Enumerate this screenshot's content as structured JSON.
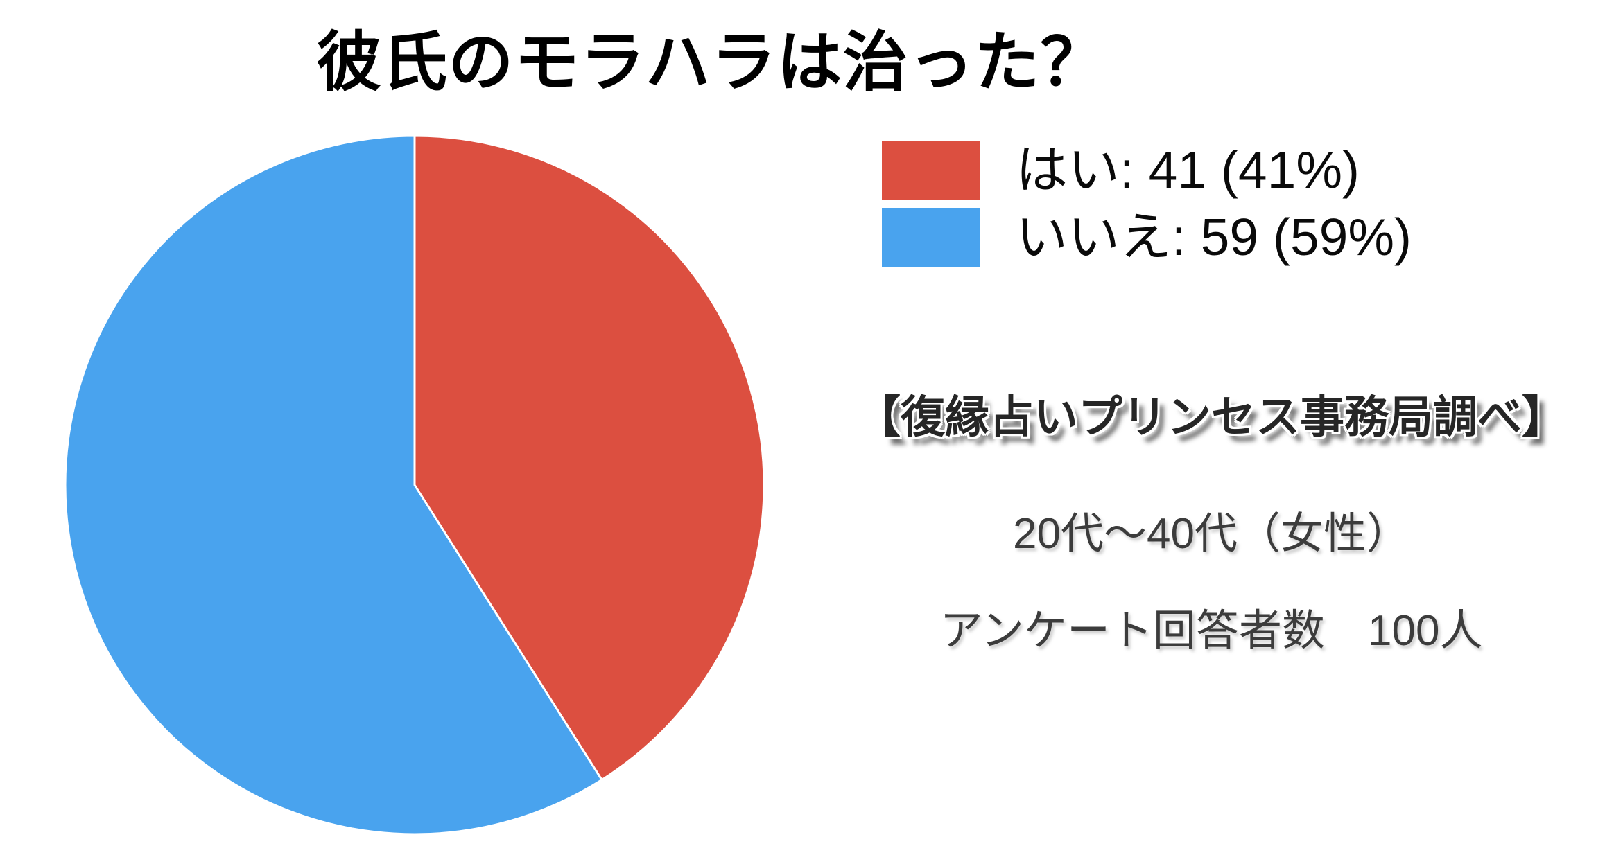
{
  "title": "彼氏のモラハラは治った？",
  "chart_data": {
    "type": "pie",
    "title": "彼氏のモラハラは治った？",
    "labels": [
      "はい",
      "いいえ"
    ],
    "values": [
      41,
      59
    ],
    "percents": [
      41,
      59
    ],
    "total": 100,
    "colors": [
      "#DC4F40",
      "#49A3EE"
    ],
    "start_angle_deg": 0,
    "direction": "clockwise",
    "legend_position": "right",
    "slice_divider_color": "#ffffff"
  },
  "legend": {
    "items": [
      {
        "label": "はい: 41 (41%)",
        "color": "#DC4F40"
      },
      {
        "label": "いいえ: 59 (59%)",
        "color": "#49A3EE"
      }
    ]
  },
  "annotations": {
    "source": "【復縁占いプリンセス事務局調べ】",
    "demographic": "20代～40代（女性）",
    "respondents": "アンケート回答者数　100人"
  }
}
